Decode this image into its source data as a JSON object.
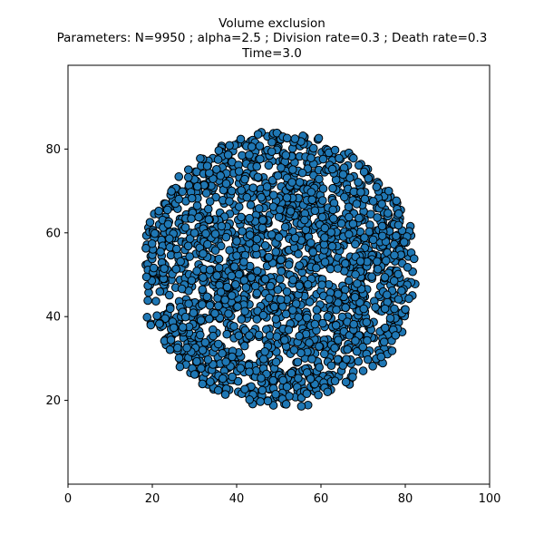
{
  "chart_data": {
    "type": "scatter",
    "title_lines": [
      "Volume exclusion",
      "Parameters: N=9950 ; alpha=2.5 ; Division rate=0.3 ; Death rate=0.3",
      "Time=3.0"
    ],
    "xlim": [
      0,
      100
    ],
    "ylim": [
      0,
      100
    ],
    "x_ticks": [
      0,
      20,
      40,
      60,
      80,
      100
    ],
    "y_ticks": [
      20,
      40,
      60,
      80
    ],
    "grid": false,
    "legend": "none",
    "marker": {
      "face_color": "#1f77b4",
      "edge_color": "#000000",
      "shape": "circle"
    },
    "cluster": {
      "center": [
        50,
        51
      ],
      "radius": 32.5,
      "approx_points": 9950,
      "x_range": [
        17.5,
        83
      ],
      "y_range": [
        18.5,
        83.5
      ]
    }
  }
}
